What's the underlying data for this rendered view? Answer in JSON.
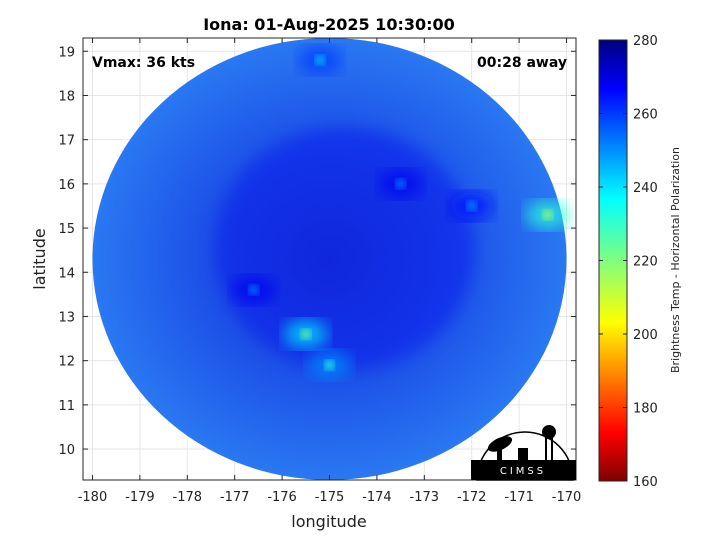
{
  "chart_data": {
    "type": "heatmap",
    "title": "Iona: 01-Aug-2025 10:30:00",
    "xlabel": "longitude",
    "ylabel": "latitude",
    "xlim": [
      -180.2,
      -169.8
    ],
    "ylim": [
      9.3,
      19.3
    ],
    "x_ticks": [
      -180,
      -179,
      -178,
      -177,
      -176,
      -175,
      -174,
      -173,
      -172,
      -171,
      -170
    ],
    "y_ticks": [
      10,
      11,
      12,
      13,
      14,
      15,
      16,
      17,
      18,
      19
    ],
    "grid": true,
    "colorbar": {
      "label": "Brightness Temp - Horizontal Polarization",
      "range": [
        160,
        280
      ],
      "ticks": [
        160,
        180,
        200,
        220,
        240,
        260,
        280
      ],
      "colormap": "jet"
    },
    "swath": {
      "center_lon": -175.0,
      "center_lat": 14.3,
      "radius_deg": 5.0,
      "background_value": 262
    },
    "features": [
      {
        "lon": -175.5,
        "lat": 12.6,
        "value": 222
      },
      {
        "lon": -175.0,
        "lat": 11.9,
        "value": 232
      },
      {
        "lon": -170.4,
        "lat": 15.3,
        "value": 214
      },
      {
        "lon": -175.2,
        "lat": 18.8,
        "value": 242
      },
      {
        "lon": -172.0,
        "lat": 15.5,
        "value": 248
      },
      {
        "lon": -173.5,
        "lat": 16.0,
        "value": 250
      },
      {
        "lon": -176.6,
        "lat": 13.6,
        "value": 250
      }
    ],
    "annotations": {
      "vmax": "Vmax: 36 kts",
      "time_away": "00:28 away"
    }
  },
  "logo": {
    "text": "CIMSS"
  }
}
